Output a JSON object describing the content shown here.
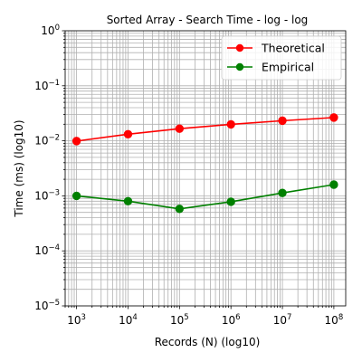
{
  "chart_data": {
    "type": "line",
    "title": "Sorted Array - Search Time - log - log",
    "xlabel": "Records (N) (log10)",
    "ylabel": "Time (ms) (log10)",
    "xscale": "log",
    "yscale": "log",
    "xlim": [
      600,
      170000000
    ],
    "ylim": [
      1e-05,
      1
    ],
    "grid": true,
    "grid_minor": true,
    "legend_position": "top-right",
    "x": [
      1000,
      10000,
      100000,
      1000000,
      10000000,
      100000000
    ],
    "x_ticks": [
      {
        "value": 1000,
        "base": "10",
        "exp": "3"
      },
      {
        "value": 10000,
        "base": "10",
        "exp": "4"
      },
      {
        "value": 100000,
        "base": "10",
        "exp": "5"
      },
      {
        "value": 1000000,
        "base": "10",
        "exp": "6"
      },
      {
        "value": 10000000,
        "base": "10",
        "exp": "7"
      },
      {
        "value": 100000000,
        "base": "10",
        "exp": "8"
      }
    ],
    "y_ticks": [
      {
        "value": 1e-05,
        "base": "10",
        "exp": "−5"
      },
      {
        "value": 0.0001,
        "base": "10",
        "exp": "−4"
      },
      {
        "value": 0.001,
        "base": "10",
        "exp": "−3"
      },
      {
        "value": 0.01,
        "base": "10",
        "exp": "−2"
      },
      {
        "value": 0.1,
        "base": "10",
        "exp": "−1"
      },
      {
        "value": 1,
        "base": "10",
        "exp": "0"
      }
    ],
    "series": [
      {
        "name": "Theoretical",
        "color": "#ff0000",
        "marker": "circle",
        "values": [
          0.0099,
          0.0132,
          0.0166,
          0.0199,
          0.0232,
          0.0265
        ]
      },
      {
        "name": "Empirical",
        "color": "#008000",
        "marker": "circle",
        "values": [
          0.001,
          0.0008,
          0.00058,
          0.00078,
          0.00113,
          0.0016
        ]
      }
    ]
  }
}
